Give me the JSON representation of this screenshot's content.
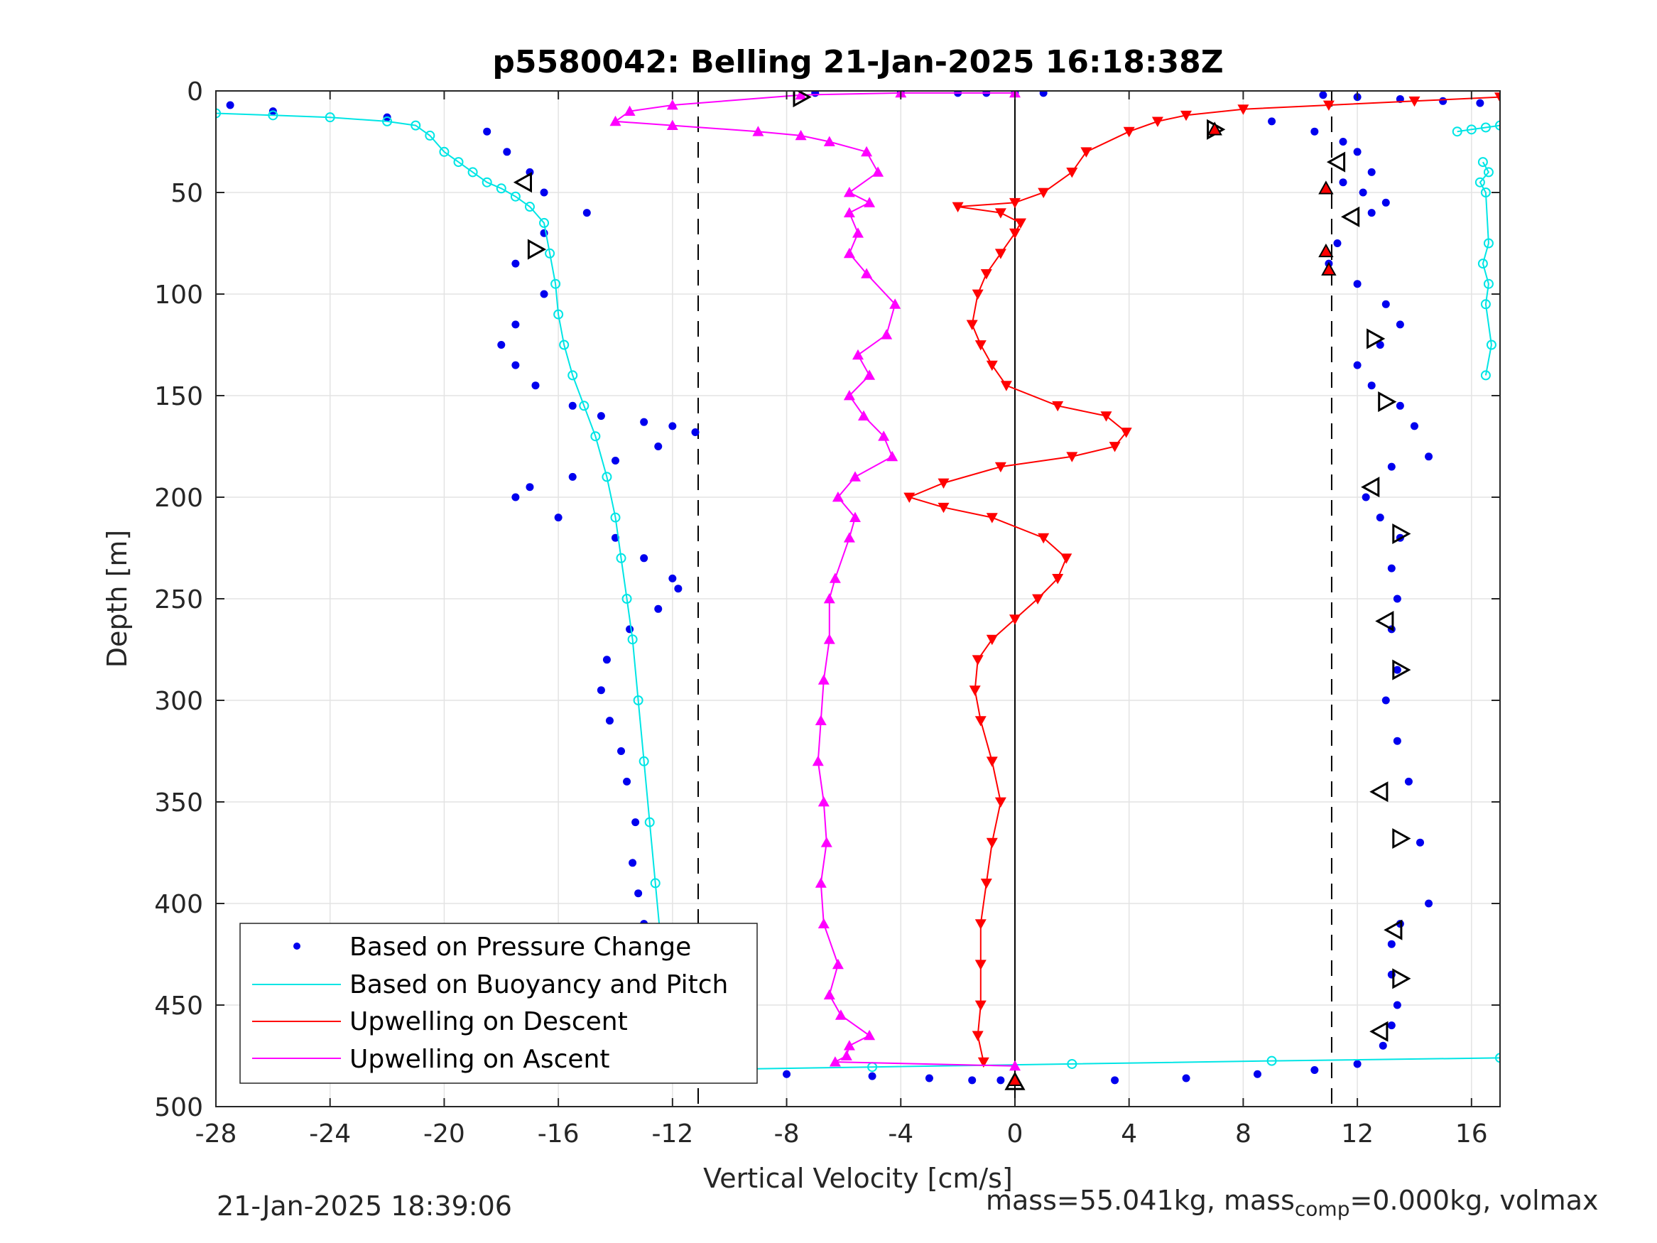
{
  "chart_data": {
    "type": "scatter",
    "title": "p5580042: Belling 21-Jan-2025 16:18:38Z",
    "xlabel": "Vertical Velocity [cm/s]",
    "ylabel": "Depth [m]",
    "xlim": [
      -28,
      17
    ],
    "ylim": [
      500,
      0
    ],
    "y_reversed": true,
    "grid": true,
    "xticks": [
      "-28",
      "-24",
      "-20",
      "-16",
      "-12",
      "-8",
      "-4",
      "0",
      "4",
      "8",
      "12",
      "16"
    ],
    "yticks": [
      "0",
      "50",
      "100",
      "150",
      "200",
      "250",
      "300",
      "350",
      "400",
      "450",
      "500"
    ],
    "reference_lines": {
      "solid": [
        0
      ],
      "dashed": [
        -11.1,
        11.1
      ]
    },
    "legend": {
      "placement": "bottom-left",
      "entries": [
        "Based on Pressure Change",
        "Based on Buoyancy and Pitch",
        "Upwelling on Descent",
        "Upwelling on Ascent"
      ]
    },
    "series": [
      {
        "name": "Based on Pressure Change",
        "color": "#0000ee",
        "marker": "dot",
        "segments": [
          {
            "x": [
              -27.5,
              -26,
              -22,
              -18.5,
              -17.8,
              -17,
              -16.5,
              -15,
              -16.5,
              -17.5,
              -16.5,
              -17.5,
              -18,
              -17.5,
              -16.8,
              -15.5,
              -14.5,
              -13,
              -12,
              -11.2,
              -12.5,
              -14,
              -15.5,
              -17,
              -17.5,
              -16,
              -14,
              -13,
              -12,
              -11.8,
              -12.5,
              -13.5,
              -14.3,
              -14.5,
              -14.2,
              -13.8,
              -13.6,
              -13.3,
              -13.4,
              -13.2,
              -13,
              -13.1,
              -12.9,
              -12.8,
              -12.6,
              -12.9
            ],
            "y": [
              7,
              10,
              13,
              20,
              30,
              40,
              50,
              60,
              70,
              85,
              100,
              115,
              125,
              135,
              145,
              155,
              160,
              163,
              165,
              168,
              175,
              182,
              190,
              195,
              200,
              210,
              220,
              230,
              240,
              245,
              255,
              265,
              280,
              295,
              310,
              325,
              340,
              360,
              380,
              395,
              410,
              425,
              440,
              455,
              470,
              482
            ]
          },
          {
            "x": [
              -7,
              -4,
              -2,
              -1,
              0,
              1
            ],
            "y": [
              1,
              1,
              1,
              1,
              1,
              1
            ]
          },
          {
            "x": [
              -11,
              -8,
              -5,
              -3,
              -1.5,
              -0.5
            ],
            "y": [
              483,
              484,
              485,
              486,
              487,
              487
            ]
          },
          {
            "x": [
              3.5,
              6,
              8.5,
              10.5,
              12
            ],
            "y": [
              487,
              486,
              484,
              482,
              479
            ]
          },
          {
            "x": [
              10.8,
              12,
              13.5,
              15,
              16.3
            ],
            "y": [
              2,
              3,
              4,
              5,
              6
            ]
          },
          {
            "x": [
              9,
              10.5,
              11.5,
              12,
              12.5,
              11.5,
              12.2,
              13,
              12.5,
              11.3,
              11,
              12,
              13,
              13.5,
              12.8,
              12,
              12.5,
              13.5,
              14,
              14.5,
              13.2,
              12.3,
              12.8,
              13.5,
              13.2,
              13.4,
              13.2,
              13.4,
              13,
              13.4,
              13.8,
              14.2,
              14.5,
              13.5,
              13.2,
              13.2,
              13.4,
              13.2,
              12.9
            ],
            "y": [
              15,
              20,
              25,
              30,
              40,
              45,
              50,
              55,
              60,
              75,
              85,
              95,
              105,
              115,
              125,
              135,
              145,
              155,
              165,
              180,
              185,
              200,
              210,
              220,
              235,
              250,
              265,
              285,
              300,
              320,
              340,
              370,
              400,
              410,
              420,
              435,
              450,
              460,
              470
            ]
          }
        ]
      },
      {
        "name": "Based on Buoyancy and Pitch",
        "color": "#00e5e5",
        "marker": "open-circle",
        "segments": [
          {
            "x": [
              -28,
              -26,
              -24,
              -22,
              -21,
              -20.5,
              -20,
              -19.5,
              -19,
              -18.5,
              -18,
              -17.5,
              -17,
              -16.5,
              -16.3,
              -16.1,
              -16,
              -15.8,
              -15.5,
              -15.1,
              -14.7,
              -14.3,
              -14,
              -13.8,
              -13.6,
              -13.4,
              -13.2,
              -13,
              -12.8,
              -12.6,
              -12.4,
              -12.2,
              -12
            ],
            "y": [
              11,
              12,
              13,
              15,
              17,
              22,
              30,
              35,
              40,
              45,
              48,
              52,
              57,
              65,
              80,
              95,
              110,
              125,
              140,
              155,
              170,
              190,
              210,
              230,
              250,
              270,
              300,
              330,
              360,
              390,
              420,
              450,
              482
            ]
          },
          {
            "x": [
              -12,
              -5,
              2,
              9,
              17
            ],
            "y": [
              482,
              480.5,
              479,
              477.5,
              476
            ]
          },
          {
            "x": [
              15.5,
              16,
              16.5,
              17
            ],
            "y": [
              20,
              19,
              18,
              17
            ]
          },
          {
            "x": [
              16.4,
              16.6,
              16.3,
              16.5,
              16.6,
              16.4,
              16.6,
              16.5,
              16.7,
              16.5
            ],
            "y": [
              35,
              40,
              45,
              50,
              75,
              85,
              95,
              105,
              125,
              140
            ]
          }
        ]
      },
      {
        "name": "Upwelling on Descent",
        "color": "#ff0000",
        "marker": "down-triangle",
        "segments": [
          {
            "x": [
              17,
              14,
              11,
              8,
              6,
              5,
              4,
              2.5,
              2,
              1,
              0,
              -2,
              -0.5,
              0.2,
              0,
              -0.5,
              -1,
              -1.3,
              -1.5,
              -1.2,
              -0.8,
              -0.3,
              1.5,
              3.2,
              3.9,
              3.5,
              2,
              -0.5,
              -2.5,
              -3.7,
              -2.5,
              -0.8,
              1,
              1.8,
              1.5,
              0.8,
              0,
              -0.8,
              -1.3,
              -1.4,
              -1.2,
              -0.8,
              -0.5,
              -0.8,
              -1,
              -1.2,
              -1.2,
              -1.2,
              -1.3,
              -1.1
            ],
            "y": [
              3,
              5,
              7,
              9,
              12,
              15,
              20,
              30,
              40,
              50,
              55,
              57,
              60,
              65,
              70,
              80,
              90,
              100,
              115,
              125,
              135,
              145,
              155,
              160,
              168,
              175,
              180,
              185,
              193,
              200,
              205,
              210,
              220,
              230,
              240,
              250,
              260,
              270,
              280,
              295,
              310,
              330,
              350,
              370,
              390,
              410,
              430,
              450,
              465,
              478
            ]
          }
        ]
      },
      {
        "name": "Upwelling on Ascent",
        "color": "#ff00ff",
        "marker": "up-triangle",
        "segments": [
          {
            "x": [
              0,
              -4,
              -7.5,
              -12,
              -13.5,
              -14,
              -12,
              -9,
              -7.5,
              -6.5,
              -5.2,
              -4.8,
              -5.8,
              -5.1,
              -5.8,
              -5.5,
              -5.8,
              -5.2,
              -4.2,
              -4.5,
              -5.5,
              -5.1,
              -5.8,
              -5.3,
              -4.6,
              -4.3,
              -5.6,
              -6.2,
              -5.6,
              -5.8,
              -6.3,
              -6.5,
              -6.5,
              -6.7,
              -6.8,
              -6.9,
              -6.7,
              -6.6,
              -6.8,
              -6.7,
              -6.2,
              -6.5,
              -6.1,
              -5.1,
              -5.8,
              -5.9,
              -6.3,
              0
            ],
            "y": [
              1,
              1,
              2,
              7,
              10,
              15,
              17,
              20,
              22,
              25,
              30,
              40,
              50,
              55,
              60,
              70,
              80,
              90,
              105,
              120,
              130,
              140,
              150,
              160,
              170,
              180,
              190,
              200,
              210,
              220,
              240,
              250,
              270,
              290,
              310,
              330,
              350,
              370,
              390,
              410,
              430,
              445,
              455,
              465,
              470,
              475,
              478,
              480
            ]
          }
        ]
      },
      {
        "name": "",
        "color": "#000000",
        "marker": "open-triangle-marks",
        "points": [
          {
            "x": -7.5,
            "y": 3,
            "dir": "right"
          },
          {
            "x": -17.2,
            "y": 45,
            "dir": "left"
          },
          {
            "x": -16.8,
            "y": 78,
            "dir": "right"
          },
          {
            "x": 7.0,
            "y": 19,
            "dir": "right"
          },
          {
            "x": 11.3,
            "y": 35,
            "dir": "left"
          },
          {
            "x": 11.8,
            "y": 62,
            "dir": "left"
          },
          {
            "x": 12.6,
            "y": 122,
            "dir": "right"
          },
          {
            "x": 13,
            "y": 153,
            "dir": "right"
          },
          {
            "x": 12.5,
            "y": 195,
            "dir": "left"
          },
          {
            "x": 13.5,
            "y": 218,
            "dir": "right"
          },
          {
            "x": 13.0,
            "y": 261,
            "dir": "left"
          },
          {
            "x": 13.5,
            "y": 285,
            "dir": "right"
          },
          {
            "x": 12.8,
            "y": 345,
            "dir": "left"
          },
          {
            "x": 13.5,
            "y": 368,
            "dir": "right"
          },
          {
            "x": 13.3,
            "y": 413,
            "dir": "left"
          },
          {
            "x": 13.5,
            "y": 437,
            "dir": "right"
          },
          {
            "x": 12.8,
            "y": 463,
            "dir": "left"
          },
          {
            "x": -13,
            "y": 481,
            "dir": "up"
          },
          {
            "x": 0,
            "y": 488,
            "dir": "up"
          }
        ]
      },
      {
        "name": "",
        "color": "#ff0000",
        "marker": "filled-triangle-marks",
        "points": [
          {
            "x": 7.0,
            "y": 19
          },
          {
            "x": 10.9,
            "y": 48
          },
          {
            "x": 10.9,
            "y": 79
          },
          {
            "x": 11.0,
            "y": 88
          },
          {
            "x": -13,
            "y": 481
          },
          {
            "x": 0,
            "y": 487
          }
        ]
      }
    ]
  },
  "footer": {
    "timestamp": "21-Jan-2025 18:39:06",
    "mass_text": "mass=55.041kg, mass",
    "mass_sub": "comp",
    "mass_rest": "=0.000kg, volmax"
  }
}
